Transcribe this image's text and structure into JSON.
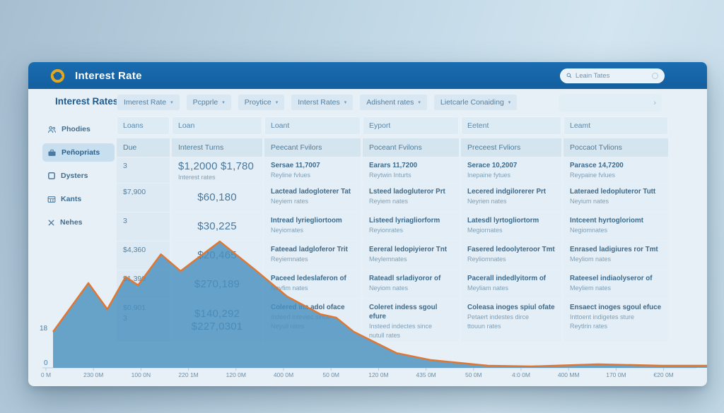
{
  "header": {
    "title": "Interest Rate",
    "search_placeholder": "Leain Tates"
  },
  "toolbar": {
    "label": "Interest Rates",
    "dropdowns": [
      "Imerest Rate",
      "Pcpprle",
      "Proytice",
      "Interst Rates",
      "Adishent rates",
      "Lietcarle Conaiding"
    ]
  },
  "sidebar": {
    "items": [
      {
        "label": "Phodies",
        "icon": "people-icon",
        "selected": false
      },
      {
        "label": "Peñopriats",
        "icon": "briefcase-icon",
        "selected": true
      },
      {
        "label": "Dysters",
        "icon": "square-icon",
        "selected": false
      },
      {
        "label": "Kants",
        "icon": "grid-icon",
        "selected": false
      },
      {
        "label": "Nehes",
        "icon": "x-icon",
        "selected": false
      }
    ]
  },
  "table": {
    "filters": [
      "Loans",
      "Loan",
      "Loant",
      "Eyport",
      "Eetent",
      "Leamt"
    ],
    "columns": [
      "Due",
      "Interest Turns",
      "Peecant Fvilors",
      "Poceant Fvilons",
      "Preceest Fvliors",
      "Poccaot Tvlions"
    ],
    "rows": [
      {
        "due": [
          "3"
        ],
        "amount": {
          "lines": [
            "$1,2000 $1,780"
          ],
          "sub": "Interest rates"
        },
        "cells": [
          [
            "Sersae 11,7007",
            "Reyline fvlues"
          ],
          [
            "Earars 11,7200",
            "Reytwin Inturts"
          ],
          [
            "Serace 10,2007",
            "Inepaine fytues"
          ],
          [
            "Parasce 14,7200",
            "Reypaine fvlues"
          ]
        ]
      },
      {
        "due": [
          "$7,900"
        ],
        "amount": {
          "lines": [
            "$60,180"
          ]
        },
        "cells": [
          [
            "Lactead ladogloterer Tat",
            "Neyiem rates"
          ],
          [
            "Lsteed ladogluteror Prt",
            "Reyiem nates"
          ],
          [
            "Lecered indgilorerer Prt",
            "Neyrien nates"
          ],
          [
            "Lateraed ledopluteror Tutt",
            "Neyium nates"
          ]
        ]
      },
      {
        "due": [
          "3"
        ],
        "amount": {
          "lines": [
            "$30,225"
          ]
        },
        "cells": [
          [
            "Intread lyriegliortoom",
            "Neyiorrates"
          ],
          [
            "Listeed lyriagliorform",
            "Reyionrates"
          ],
          [
            "Latesdl lyrtogliortorm",
            "Megiornates"
          ],
          [
            "Intceent hyrtogloriomt",
            "Negiomnates"
          ]
        ]
      },
      {
        "due": [
          "$4,360"
        ],
        "amount": {
          "lines": [
            "$20,465"
          ]
        },
        "cells": [
          [
            "Fateead ladgloferor Trit",
            "Reyiemnates"
          ],
          [
            "Eereral ledopiyieror Tnt",
            "Meylemnates"
          ],
          [
            "Fasered ledoolyteroor Tmt",
            "Reyliomnates"
          ],
          [
            "Enrased ladigiures ror Tmt",
            "Meyliom nates"
          ]
        ]
      },
      {
        "due": [
          "$1,390"
        ],
        "amount": {
          "lines": [
            "$270,189"
          ]
        },
        "cells": [
          [
            "Paceed ledeslaferon of",
            "Neyfim nates"
          ],
          [
            "Rateadl srladiyoror of",
            "Neyiom nates"
          ],
          [
            "Pacerall indedlyitorm of",
            "Meyliam nates"
          ],
          [
            "Rateesel indiaolyseror of",
            "Meyliem nates"
          ]
        ]
      },
      {
        "due": [
          "$0,901",
          "3"
        ],
        "amount": {
          "lines": [
            "$140,292",
            "$227,0301"
          ]
        },
        "cells": [
          [
            "Colered ins adol oface",
            "Indeed inteviec since",
            "Neyull rates"
          ],
          [
            "Coleret indess sgoul efure",
            "Insteed indectes since",
            "nutull rates"
          ],
          [
            "Coleasa inoges spiul ofate",
            "Petaert indestes dirce",
            "ttouun rates"
          ],
          [
            "Ensaect inoges sgoul efuce",
            "Inttoent indigetes sture",
            "Reytlrin rates"
          ]
        ]
      }
    ]
  },
  "chart_data": {
    "type": "area",
    "title": "",
    "xlabel": "",
    "ylabel": "",
    "x_tick_labels": [
      "0 M",
      "230 0M",
      "100 0N",
      "220 1M",
      "120 0M",
      "400 0M",
      "50 0M",
      "120 0M",
      "435 0M",
      "50 0M",
      "4:0 0M",
      "400 MM",
      "170 0M",
      "€20 0M"
    ],
    "y_tick_labels": [
      "18",
      "0"
    ],
    "ylim": [
      0,
      65
    ],
    "grid": false,
    "legend": false,
    "series": [
      {
        "name": "interest-rate-trend",
        "points": [
          {
            "x": 0.0,
            "v": 18.0
          },
          {
            "x": 0.054,
            "v": 42.4
          },
          {
            "x": 0.083,
            "v": 29.3
          },
          {
            "x": 0.111,
            "v": 45.5
          },
          {
            "x": 0.13,
            "v": 41.3
          },
          {
            "x": 0.165,
            "v": 56.8
          },
          {
            "x": 0.195,
            "v": 48.4
          },
          {
            "x": 0.255,
            "v": 63.2
          },
          {
            "x": 0.306,
            "v": 49.8
          },
          {
            "x": 0.358,
            "v": 35.7
          },
          {
            "x": 0.409,
            "v": 26.8
          },
          {
            "x": 0.433,
            "v": 25.1
          },
          {
            "x": 0.46,
            "v": 18.0
          },
          {
            "x": 0.525,
            "v": 7.4
          },
          {
            "x": 0.578,
            "v": 3.9
          },
          {
            "x": 0.665,
            "v": 1.1
          },
          {
            "x": 0.731,
            "v": 0.7
          },
          {
            "x": 0.833,
            "v": 1.8
          },
          {
            "x": 0.93,
            "v": 1.1
          },
          {
            "x": 1.0,
            "v": 1.1
          }
        ]
      }
    ],
    "colors": {
      "area_fill": "#4a90be",
      "line": "#e2762f"
    }
  },
  "colors": {
    "header_blue": "#1566aa",
    "logo_gold": "#e3a81f",
    "card_bg": "#e7f0f7",
    "chip_bg": "#d8e7f1",
    "accent_text": "#1b5c94"
  }
}
